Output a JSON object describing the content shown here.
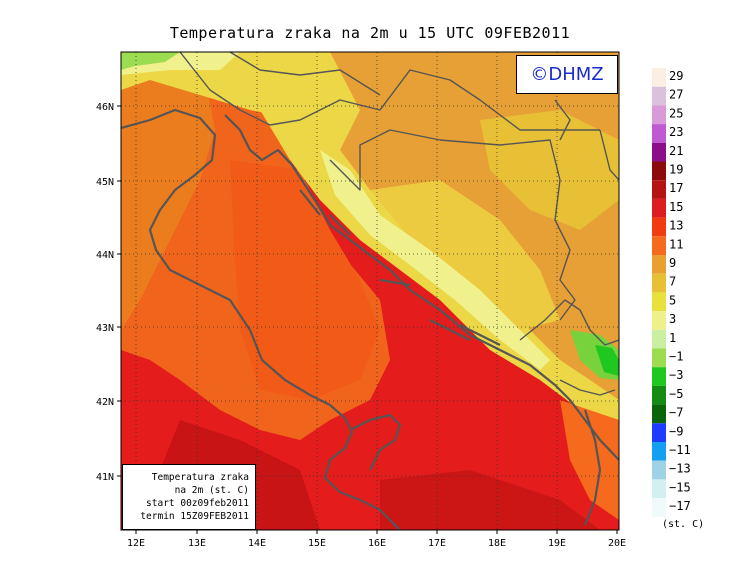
{
  "title": "Temperatura zraka na 2m u 15 UTC 09FEB2011",
  "logo_text": "©DHMZ",
  "info_box": {
    "line1": "Temperatura zraka",
    "line2": "na 2m (st. C)",
    "line3": "start 00z09feb2011",
    "line4": "termin 15Z09FEB2011"
  },
  "axes": {
    "lon_labels": [
      "12E",
      "13E",
      "14E",
      "15E",
      "16E",
      "17E",
      "18E",
      "19E",
      "20E"
    ],
    "lat_labels": [
      "46N",
      "45N",
      "44N",
      "43N",
      "42N",
      "41N"
    ]
  },
  "legend": {
    "unit": "(st. C)",
    "labels": [
      "29",
      "27",
      "25",
      "23",
      "21",
      "19",
      "17",
      "15",
      "13",
      "11",
      "9",
      "7",
      "5",
      "3",
      "1",
      "−1",
      "−3",
      "−5",
      "−7",
      "−9",
      "−11",
      "−13",
      "−15",
      "−17"
    ],
    "colors": [
      "#fbefe4",
      "#dcc1dc",
      "#d99ad8",
      "#c05ad2",
      "#8c0f8a",
      "#8c0a0a",
      "#b41414",
      "#dc1e1e",
      "#f03c0f",
      "#f56a1c",
      "#e8a030",
      "#e8c035",
      "#e8e03c",
      "#f0f08a",
      "#c8f0a0",
      "#9cdc50",
      "#1ec81e",
      "#148c14",
      "#0a640a",
      "#1e3cff",
      "#14a0f0",
      "#a0d2e6",
      "#d2f0f0",
      "#f0fafa"
    ]
  },
  "colors": {
    "sea_warm": "#e41c1c",
    "sea_mid": "#f0641c",
    "coast_orange": "#ec7d1e",
    "inland_amber": "#e6a035",
    "inland_yellow": "#ecd846",
    "highland_light": "#f0f08c",
    "mountain_green": "#78d23c",
    "border_gray": "#555555",
    "logo_blue": "#1a2bcc"
  }
}
